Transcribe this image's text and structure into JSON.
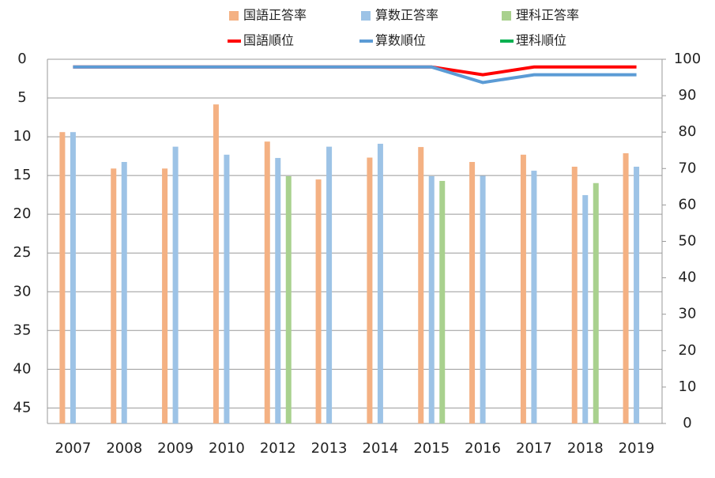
{
  "chart_data": {
    "type": "bar",
    "categories": [
      "2007",
      "2008",
      "2009",
      "2010",
      "2012",
      "2013",
      "2014",
      "2015",
      "2016",
      "2017",
      "2018",
      "2019"
    ],
    "ylim": [
      0,
      47
    ],
    "yreverse": true,
    "yticks": [
      0,
      5,
      10,
      15,
      20,
      25,
      30,
      35,
      40,
      45
    ],
    "y2lim": [
      0,
      100
    ],
    "y2ticks": [
      0,
      10,
      20,
      30,
      40,
      50,
      60,
      70,
      80,
      90,
      100
    ],
    "grid": true,
    "legend": "top",
    "series": [
      {
        "name": "国語正答率",
        "color": "#f4b183",
        "axis": "y2",
        "values": [
          80,
          70,
          70,
          87.6,
          77.4,
          67,
          73,
          75.9,
          71.8,
          73.8,
          70.5,
          74.2
        ]
      },
      {
        "name": "算数正答率",
        "color": "#9dc3e6",
        "axis": "y2",
        "values": [
          80,
          71.8,
          76,
          73.8,
          72.9,
          76,
          76.8,
          67.9,
          68,
          69.4,
          62.7,
          70.5
        ]
      },
      {
        "name": "理科正答率",
        "color": "#a9d18e",
        "axis": "y2",
        "values": [
          null,
          null,
          null,
          null,
          67.9,
          null,
          null,
          66.6,
          null,
          null,
          66,
          null
        ]
      },
      {
        "name": "国語順位",
        "color": "#ff0000",
        "type": "line",
        "values": [
          1,
          1,
          1,
          1,
          1,
          1,
          1,
          1,
          2,
          1,
          1,
          1
        ]
      },
      {
        "name": "算数順位",
        "color": "#5b9bd5",
        "type": "line",
        "values": [
          1,
          1,
          1,
          1,
          1,
          1,
          1,
          1,
          3,
          2,
          2,
          2
        ]
      },
      {
        "name": "理科順位",
        "color": "#00b050",
        "type": "line",
        "values": [
          null,
          null,
          null,
          null,
          null,
          null,
          null,
          null,
          null,
          null,
          null,
          null
        ]
      }
    ]
  }
}
